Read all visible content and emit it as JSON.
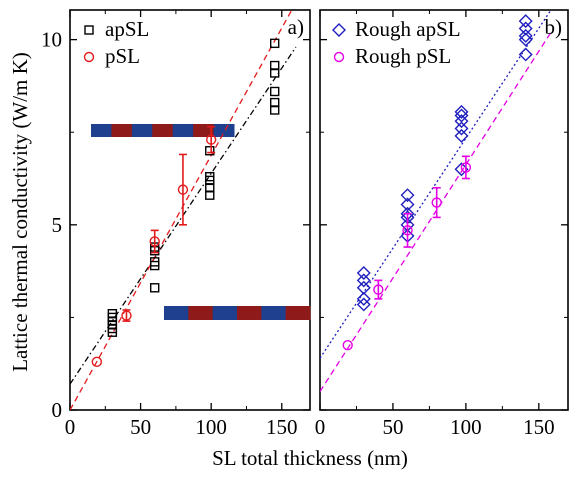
{
  "figure": {
    "ylabel": "Lattice thermal conductivity (W/m K)",
    "xlabel": "SL total thickness (nm)"
  },
  "colors": {
    "black": "#000000",
    "red": "#e31a1c",
    "blue": "#1f1fbf",
    "magenta": "#e600e6",
    "sl_blue": "#1f3f8f",
    "sl_red": "#8f1a1a"
  },
  "chart_data": [
    {
      "type": "scatter",
      "panel_label": "a)",
      "xlim": [
        0,
        170
      ],
      "ylim": [
        0,
        10.8
      ],
      "x_ticks": [
        0,
        50,
        100,
        150
      ],
      "x_tick_labels": [
        "0",
        "50",
        "100",
        "150"
      ],
      "y_ticks": [
        0,
        5,
        10
      ],
      "y_tick_labels": [
        "0",
        "5",
        "10"
      ],
      "legend_position": "top-left",
      "series": [
        {
          "name": "apSL",
          "marker": "square",
          "color": "#000000",
          "points": [
            [
              30,
              2.1
            ],
            [
              30,
              2.2
            ],
            [
              30,
              2.3
            ],
            [
              30,
              2.4
            ],
            [
              30,
              2.5
            ],
            [
              30,
              2.6
            ],
            [
              60,
              3.3
            ],
            [
              60,
              3.9
            ],
            [
              60,
              4.0
            ],
            [
              60,
              4.3
            ],
            [
              60,
              4.4
            ],
            [
              99,
              5.8
            ],
            [
              99,
              6.0
            ],
            [
              99,
              6.2
            ],
            [
              99,
              6.3
            ],
            [
              99,
              7.0
            ],
            [
              145,
              8.1
            ],
            [
              145,
              8.3
            ],
            [
              145,
              8.6
            ],
            [
              145,
              9.1
            ],
            [
              145,
              9.3
            ],
            [
              145,
              9.9
            ]
          ],
          "fit": {
            "style": "dash-dot",
            "x": [
              0,
              160
            ],
            "y": [
              0.7,
              9.8
            ]
          }
        },
        {
          "name": "pSL",
          "marker": "circle",
          "color": "#e31a1c",
          "points": [
            [
              19,
              1.3
            ],
            [
              40,
              2.55
            ],
            [
              60,
              4.55
            ],
            [
              80,
              5.95
            ],
            [
              100,
              7.3
            ]
          ],
          "errors": [
            0.05,
            0.15,
            0.3,
            0.95,
            0.35
          ],
          "fit": {
            "style": "dash",
            "x": [
              0,
              160
            ],
            "y": [
              0,
              11.0
            ]
          }
        }
      ]
    },
    {
      "type": "scatter",
      "panel_label": "b)",
      "xlim": [
        0,
        170
      ],
      "ylim": [
        0,
        10.8
      ],
      "x_ticks": [
        0,
        50,
        100,
        150
      ],
      "x_tick_labels": [
        "0",
        "50",
        "100",
        "150"
      ],
      "y_ticks": [
        0,
        5,
        10
      ],
      "y_tick_labels": [
        "",
        "",
        ""
      ],
      "legend_position": "top-left",
      "series": [
        {
          "name": "Rough apSL",
          "marker": "diamond",
          "color": "#1f1fbf",
          "points": [
            [
              30,
              2.85
            ],
            [
              30,
              3.0
            ],
            [
              30,
              3.3
            ],
            [
              30,
              3.5
            ],
            [
              30,
              3.7
            ],
            [
              60,
              4.7
            ],
            [
              60,
              5.0
            ],
            [
              60,
              5.2
            ],
            [
              60,
              5.3
            ],
            [
              60,
              5.55
            ],
            [
              60,
              5.8
            ],
            [
              97,
              6.5
            ],
            [
              97,
              7.4
            ],
            [
              97,
              7.6
            ],
            [
              97,
              7.8
            ],
            [
              97,
              7.95
            ],
            [
              97,
              8.05
            ],
            [
              141,
              9.6
            ],
            [
              141,
              10.0
            ],
            [
              141,
              10.1
            ],
            [
              141,
              10.3
            ],
            [
              141,
              10.5
            ]
          ],
          "fit": {
            "style": "dot",
            "x": [
              0,
              160
            ],
            "y": [
              1.4,
              10.9
            ]
          }
        },
        {
          "name": "Rough pSL",
          "marker": "circle",
          "color": "#e600e6",
          "points": [
            [
              19,
              1.75
            ],
            [
              40,
              3.25
            ],
            [
              60,
              4.85
            ],
            [
              80,
              5.6
            ],
            [
              100,
              6.55
            ]
          ],
          "errors": [
            0.05,
            0.25,
            0.45,
            0.4,
            0.3
          ],
          "fit": {
            "style": "dash",
            "x": [
              0,
              160
            ],
            "y": [
              0.5,
              10.3
            ]
          }
        }
      ]
    }
  ]
}
